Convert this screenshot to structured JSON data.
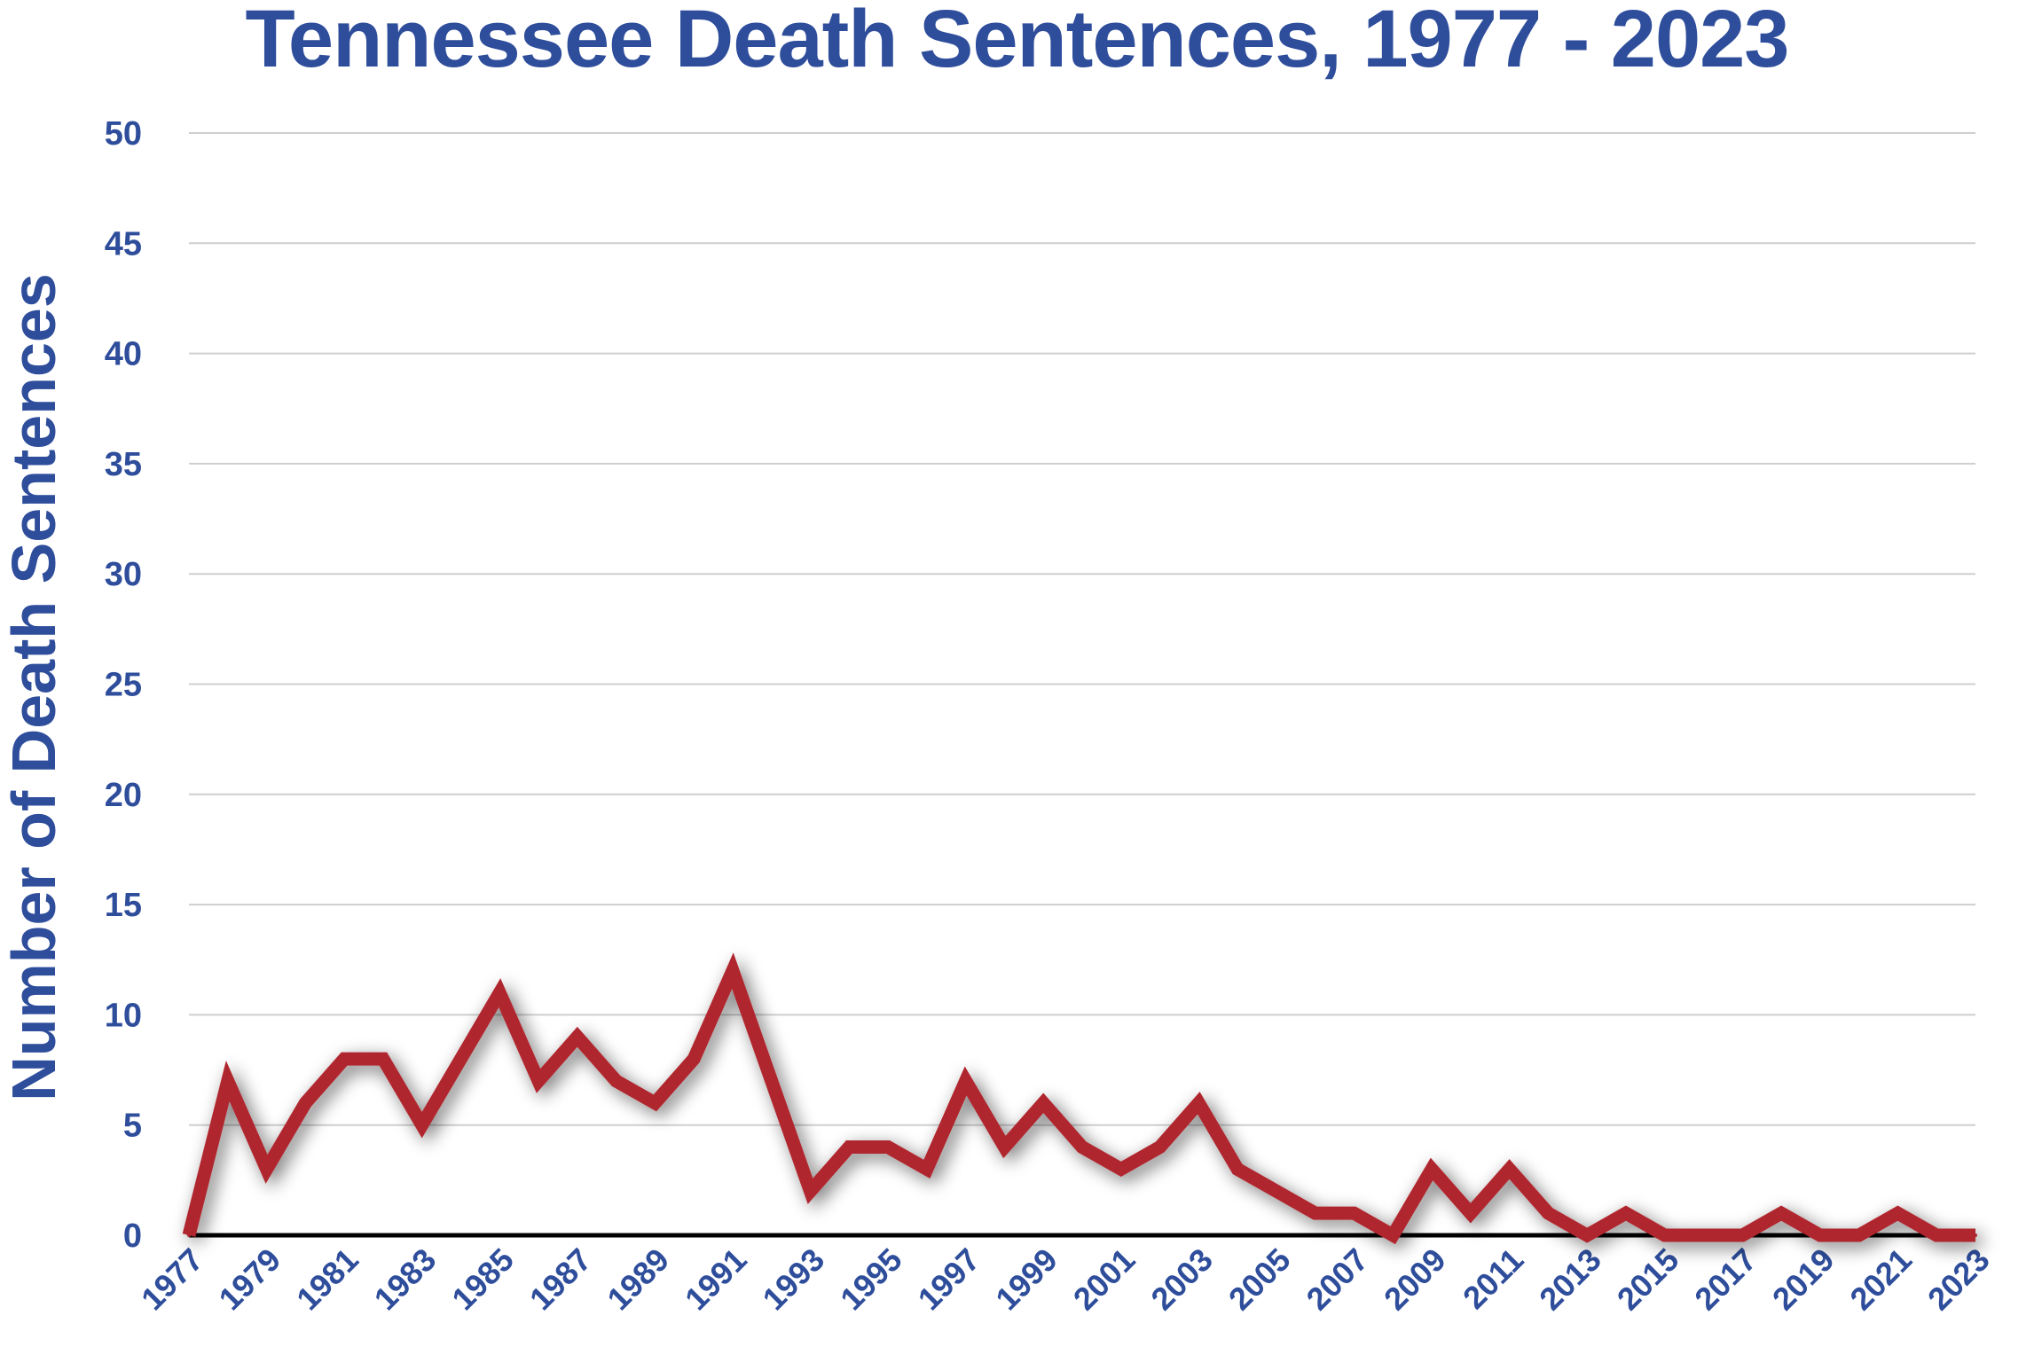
{
  "chart_data": {
    "type": "line",
    "title": "Tennessee Death Sentences, 1977 - 2023",
    "xlabel": "",
    "ylabel": "Number of Death Sentences",
    "ylim": [
      0,
      50
    ],
    "yticks": [
      0,
      5,
      10,
      15,
      20,
      25,
      30,
      35,
      40,
      45,
      50
    ],
    "grid": true,
    "x": [
      1977,
      1978,
      1979,
      1980,
      1981,
      1982,
      1983,
      1984,
      1985,
      1986,
      1987,
      1988,
      1989,
      1990,
      1991,
      1992,
      1993,
      1994,
      1995,
      1996,
      1997,
      1998,
      1999,
      2000,
      2001,
      2002,
      2003,
      2004,
      2005,
      2006,
      2007,
      2008,
      2009,
      2010,
      2011,
      2012,
      2013,
      2014,
      2015,
      2016,
      2017,
      2018,
      2019,
      2020,
      2021,
      2022,
      2023
    ],
    "xtick_labels": [
      "1977",
      "1979",
      "1981",
      "1983",
      "1985",
      "1987",
      "1989",
      "1991",
      "1993",
      "1995",
      "1997",
      "1999",
      "2001",
      "2003",
      "2005",
      "2007",
      "2009",
      "2011",
      "2013",
      "2015",
      "2017",
      "2019",
      "2021",
      "2023"
    ],
    "series": [
      {
        "name": "Death Sentences",
        "color": "#b0282f",
        "values": [
          0,
          7,
          3,
          6,
          8,
          8,
          5,
          8,
          11,
          7,
          9,
          7,
          6,
          8,
          12,
          7,
          2,
          4,
          4,
          3,
          7,
          4,
          6,
          4,
          3,
          4,
          6,
          3,
          2,
          1,
          1,
          0,
          3,
          1,
          3,
          1,
          0,
          1,
          0,
          0,
          0,
          1,
          0,
          0,
          1,
          0,
          0
        ]
      }
    ]
  }
}
